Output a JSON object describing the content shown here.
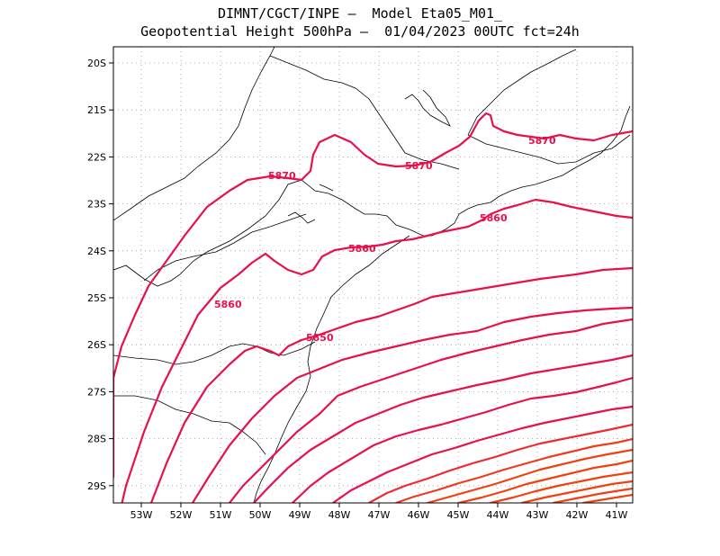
{
  "title": {
    "line1": "DIMNT/CGCT/INPE –  Model Eta05_M01_",
    "line2": "Geopotential Height 500hPa –  01/04/2023 00UTC fct=24h"
  },
  "axes": {
    "x_ticks": [
      "53W",
      "52W",
      "51W",
      "50W",
      "49W",
      "48W",
      "47W",
      "46W",
      "45W",
      "44W",
      "43W",
      "42W",
      "41W"
    ],
    "y_ticks": [
      "20S",
      "21S",
      "22S",
      "23S",
      "24S",
      "25S",
      "26S",
      "27S",
      "28S",
      "29S"
    ],
    "grid": "dotted"
  },
  "colors": {
    "contour_main": "#e8104a",
    "contour_warm": "#f04010",
    "coastline": "#000000"
  },
  "contour_labels": [
    "5870",
    "5870",
    "5870",
    "5860",
    "5860",
    "5860",
    "5850"
  ]
}
